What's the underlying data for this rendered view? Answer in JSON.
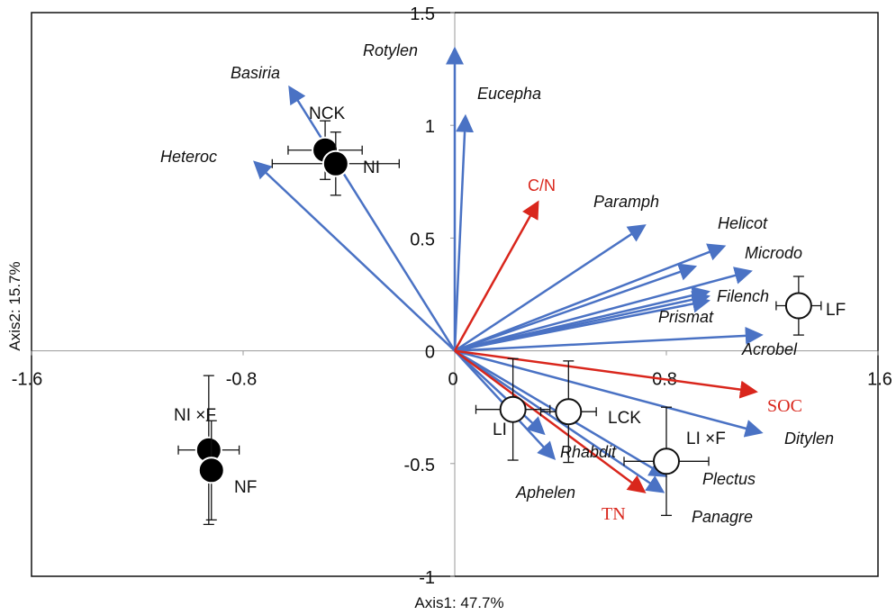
{
  "chart_data": {
    "type": "scatter",
    "subtype": "biplot",
    "xlabel": "Axis1: 47.7%",
    "ylabel": "Axis2: 15.7%",
    "xlim": [
      -1.6,
      1.6
    ],
    "ylim": [
      -1,
      1.5
    ],
    "xticks": [
      "-1.6",
      "-0.8",
      "0",
      "0.8",
      "1.6"
    ],
    "yticks": [
      "1.5",
      "1",
      "0.5",
      "0",
      "-0.5",
      "-1"
    ],
    "grid": false,
    "colors": {
      "species": "#4a72c4",
      "environment": "#d9261c",
      "treatment_filled": "#000000",
      "treatment_open": "#ffffff"
    },
    "species_arrows": [
      {
        "name": "Rotylen",
        "x": 0.0,
        "y": 1.33
      },
      {
        "name": "Eucepha",
        "x": 0.04,
        "y": 1.03
      },
      {
        "name": "Basiria",
        "x": -0.62,
        "y": 1.16
      },
      {
        "name": "Heteroc",
        "x": -0.75,
        "y": 0.83
      },
      {
        "name": "Paramph",
        "x": 0.71,
        "y": 0.55
      },
      {
        "name": "Helicot",
        "x": 1.01,
        "y": 0.46
      },
      {
        "name": "",
        "x": 0.9,
        "y": 0.37
      },
      {
        "name": "Microdo",
        "x": 1.11,
        "y": 0.35
      },
      {
        "name": "Filench",
        "x": 0.95,
        "y": 0.26
      },
      {
        "name": "Prismat",
        "x": 0.95,
        "y": 0.22
      },
      {
        "name": "",
        "x": 0.95,
        "y": 0.24
      },
      {
        "name": "Acrobel",
        "x": 1.15,
        "y": 0.07
      },
      {
        "name": "Ditylen",
        "x": 1.15,
        "y": -0.36
      },
      {
        "name": "Plectus",
        "x": 0.79,
        "y": -0.55
      },
      {
        "name": "Panagre",
        "x": 0.78,
        "y": -0.62
      },
      {
        "name": "Rhabdit",
        "x": 0.33,
        "y": -0.36
      },
      {
        "name": "Aphelen",
        "x": 0.37,
        "y": -0.47
      }
    ],
    "env_arrows": [
      {
        "name": "C/N",
        "x": 0.31,
        "y": 0.65
      },
      {
        "name": "SOC",
        "x": 1.13,
        "y": -0.18
      },
      {
        "name": "TN",
        "x": 0.71,
        "y": -0.62
      }
    ],
    "treatments": [
      {
        "name": "NCK",
        "x": -0.49,
        "y": 0.89,
        "ex": 0.14,
        "ey": 0.13,
        "filled": true
      },
      {
        "name": "NI",
        "x": -0.45,
        "y": 0.83,
        "ex": 0.24,
        "ey": 0.14,
        "filled": true
      },
      {
        "name": "NI ×F",
        "x": -0.93,
        "y": -0.44,
        "ex": 0.115,
        "ey": 0.33,
        "filled": true
      },
      {
        "name": "NF",
        "x": -0.92,
        "y": -0.53,
        "ex": 0.03,
        "ey": 0.22,
        "filled": true
      },
      {
        "name": "LF",
        "x": 1.3,
        "y": 0.2,
        "ex": 0.085,
        "ey": 0.13,
        "filled": false
      },
      {
        "name": "LI",
        "x": 0.22,
        "y": -0.26,
        "ex": 0.14,
        "ey": 0.225,
        "filled": false
      },
      {
        "name": "LCK",
        "x": 0.43,
        "y": -0.27,
        "ex": 0.105,
        "ey": 0.225,
        "filled": false
      },
      {
        "name": "LI ×F",
        "x": 0.8,
        "y": -0.49,
        "ex": 0.16,
        "ey": 0.24,
        "filled": false
      }
    ]
  }
}
